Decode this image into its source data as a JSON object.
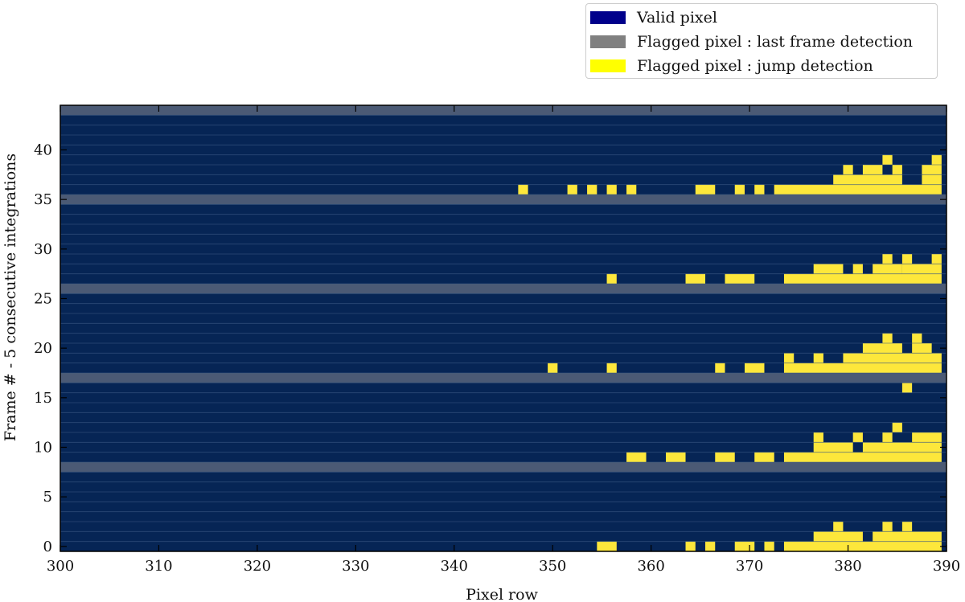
{
  "legend": {
    "items": [
      {
        "label": "Valid pixel",
        "color": "#00008b"
      },
      {
        "label": "Flagged pixel : last frame detection",
        "color": "#808080"
      },
      {
        "label": "Flagged pixel : jump detection",
        "color": "#ffff00"
      }
    ]
  },
  "colors": {
    "valid": "#062555",
    "last_frame": "#4b5a75",
    "jump": "#fde73b",
    "row_line": "#3c5a84"
  },
  "chart_data": {
    "type": "heatmap",
    "xlabel": "Pixel row",
    "ylabel": "Frame # - 5 consecutive integrations",
    "xlim": [
      300,
      390
    ],
    "ylim": [
      -0.5,
      44.5
    ],
    "x_ticks": [
      300,
      310,
      320,
      330,
      340,
      350,
      360,
      370,
      380,
      390
    ],
    "y_ticks": [
      0,
      5,
      10,
      15,
      20,
      25,
      30,
      35,
      40
    ],
    "last_frame_rows": [
      8,
      17,
      26,
      35,
      44
    ],
    "jump_cells": [
      [
        0,
        [
          [
            355,
            356
          ],
          [
            364,
            364
          ],
          [
            366,
            366
          ],
          [
            369,
            370
          ],
          [
            372,
            372
          ],
          [
            374,
            389
          ]
        ]
      ],
      [
        1,
        [
          [
            377,
            381
          ],
          [
            383,
            389
          ]
        ]
      ],
      [
        2,
        [
          [
            379,
            379
          ],
          [
            384,
            384
          ],
          [
            386,
            386
          ]
        ]
      ],
      [
        9,
        [
          [
            358,
            359
          ],
          [
            362,
            363
          ],
          [
            367,
            367
          ],
          [
            368,
            368
          ],
          [
            371,
            372
          ],
          [
            374,
            389
          ]
        ]
      ],
      [
        10,
        [
          [
            377,
            380
          ],
          [
            382,
            389
          ]
        ]
      ],
      [
        11,
        [
          [
            377,
            377
          ],
          [
            381,
            381
          ],
          [
            384,
            384
          ],
          [
            387,
            389
          ]
        ]
      ],
      [
        12,
        [
          [
            385,
            385
          ]
        ]
      ],
      [
        16,
        [
          [
            386,
            386
          ]
        ]
      ],
      [
        18,
        [
          [
            350,
            350
          ],
          [
            356,
            356
          ],
          [
            367,
            367
          ],
          [
            370,
            371
          ],
          [
            374,
            389
          ]
        ]
      ],
      [
        19,
        [
          [
            374,
            374
          ],
          [
            377,
            377
          ],
          [
            380,
            389
          ]
        ]
      ],
      [
        20,
        [
          [
            382,
            385
          ],
          [
            387,
            388
          ]
        ]
      ],
      [
        21,
        [
          [
            384,
            384
          ],
          [
            387,
            387
          ]
        ]
      ],
      [
        27,
        [
          [
            356,
            356
          ],
          [
            364,
            365
          ],
          [
            368,
            370
          ],
          [
            374,
            389
          ]
        ]
      ],
      [
        28,
        [
          [
            377,
            379
          ],
          [
            381,
            381
          ],
          [
            383,
            385
          ],
          [
            386,
            389
          ]
        ]
      ],
      [
        29,
        [
          [
            384,
            384
          ],
          [
            386,
            386
          ],
          [
            389,
            389
          ]
        ]
      ],
      [
        36,
        [
          [
            347,
            347
          ],
          [
            352,
            352
          ],
          [
            354,
            354
          ],
          [
            356,
            356
          ],
          [
            358,
            358
          ],
          [
            365,
            366
          ],
          [
            369,
            369
          ],
          [
            371,
            371
          ],
          [
            373,
            389
          ]
        ]
      ],
      [
        37,
        [
          [
            379,
            385
          ],
          [
            388,
            389
          ]
        ]
      ],
      [
        38,
        [
          [
            380,
            380
          ],
          [
            382,
            383
          ],
          [
            385,
            385
          ],
          [
            388,
            389
          ]
        ]
      ],
      [
        39,
        [
          [
            384,
            384
          ],
          [
            389,
            389
          ]
        ]
      ]
    ]
  }
}
